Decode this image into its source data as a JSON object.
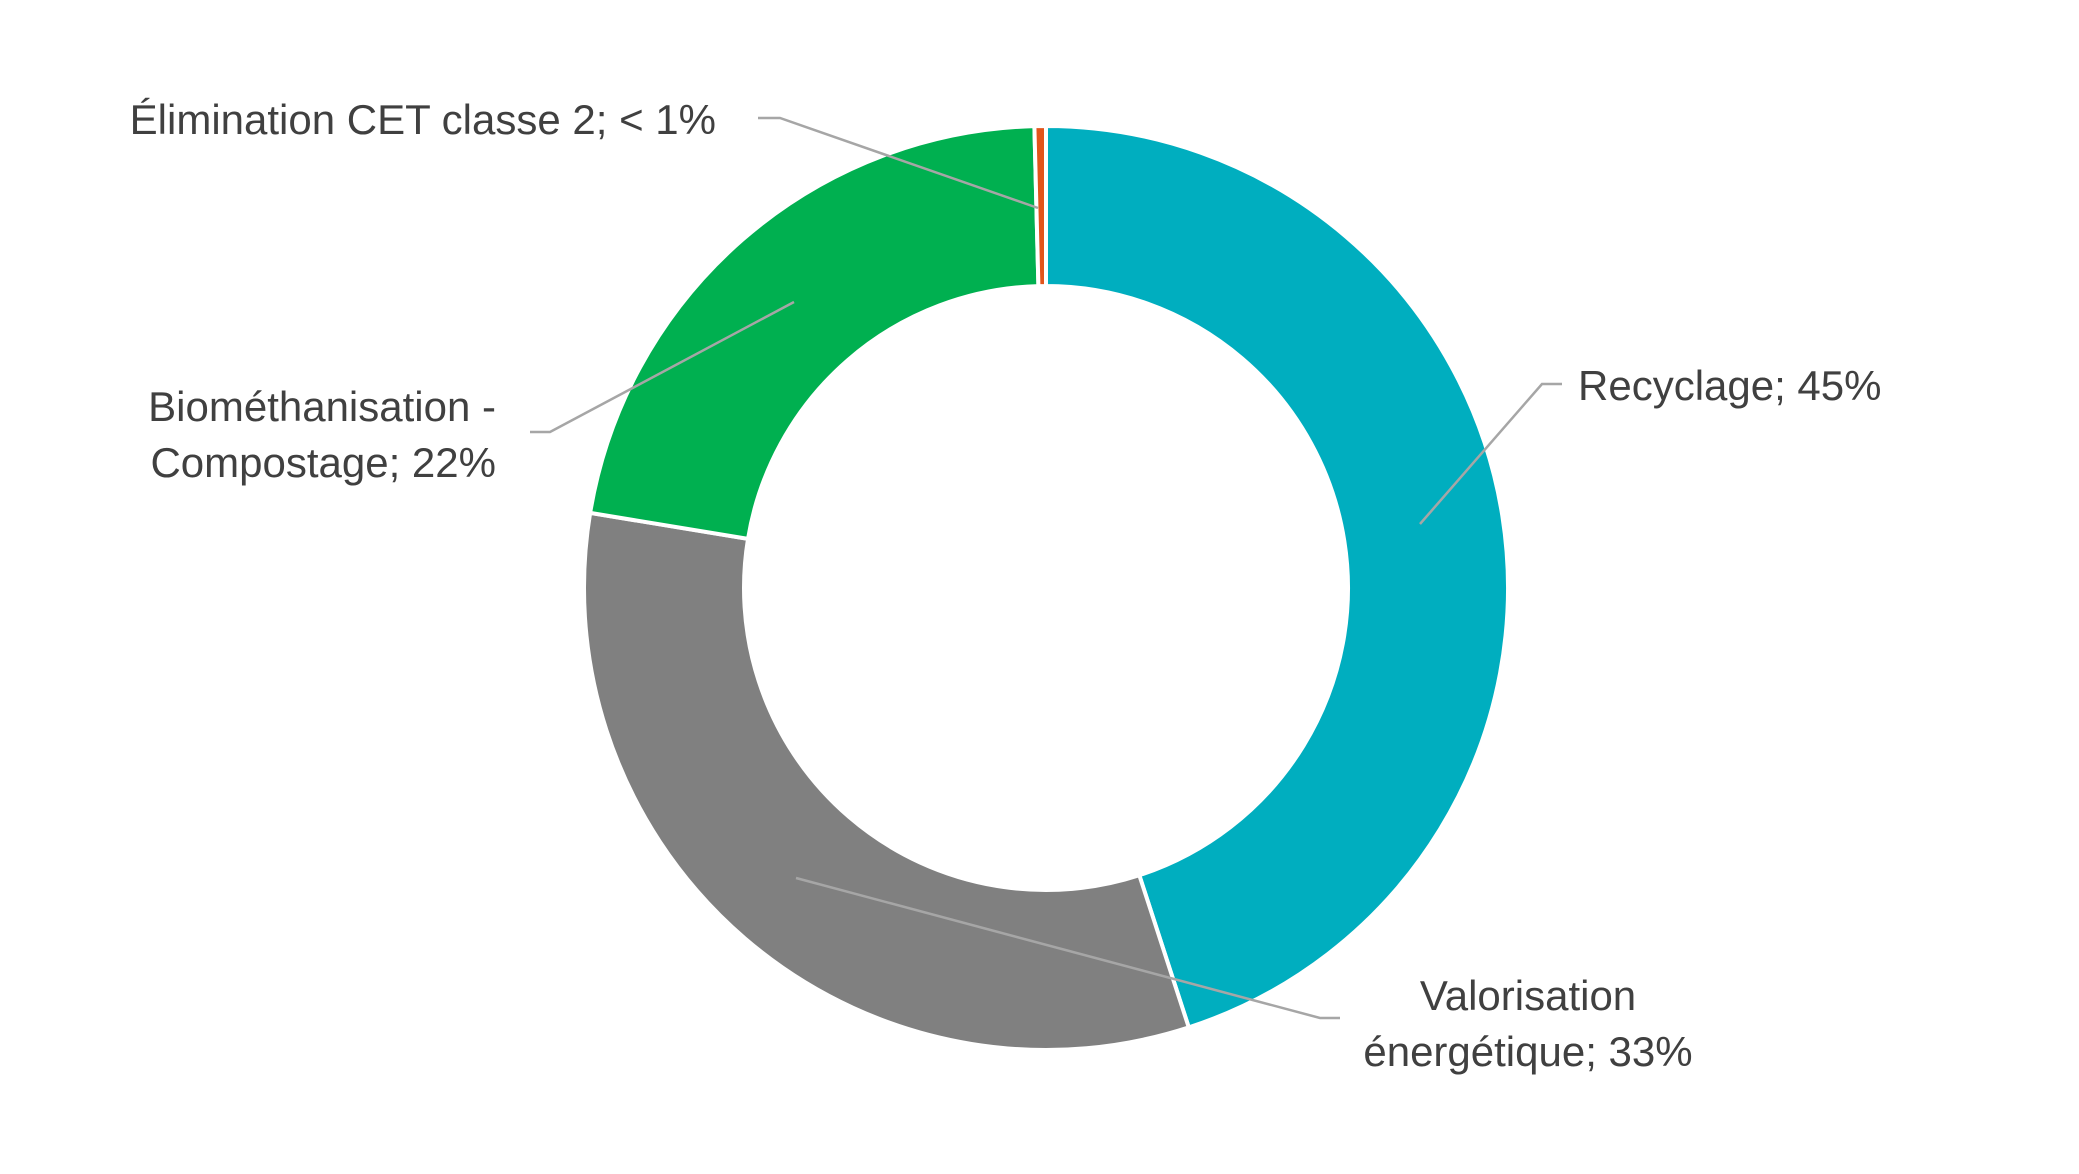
{
  "chart_data": {
    "type": "donut",
    "series": [
      {
        "name": "Recyclage",
        "value": 45,
        "color": "#00AEBF",
        "label_lines": [
          "Recyclage; 45%"
        ]
      },
      {
        "name": "Valorisation énergétique",
        "value": 32.6,
        "color": "#808080",
        "label_lines": [
          "Valorisation",
          "énergétique; 33%"
        ]
      },
      {
        "name": "Biométhanisation - Compostage",
        "value": 22,
        "color": "#00B050",
        "label_lines": [
          "Biométhanisation -",
          "Compostage; 22%"
        ]
      },
      {
        "name": "Élimination CET classe 2",
        "value": 0.4,
        "color": "#E2541B",
        "label_lines": [
          "Élimination CET classe 2; < 1%"
        ]
      }
    ],
    "title": "",
    "legend": "none",
    "start_angle": "top, clockwise"
  }
}
